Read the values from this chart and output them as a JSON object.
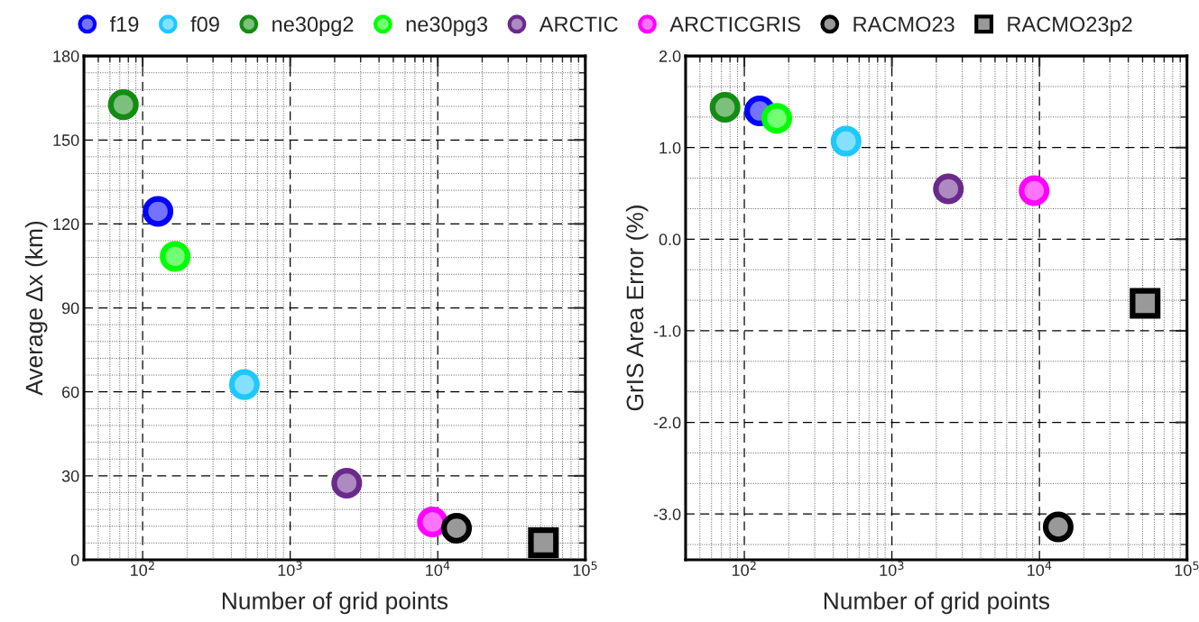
{
  "chart_data": [
    {
      "type": "scatter",
      "xlabel": "Number of grid points",
      "ylabel": "Average Δx (km)",
      "log": "x",
      "grid": true,
      "legend": "top",
      "marker": "circle",
      "xlim": [
        40,
        100000
      ],
      "xticks": [
        {
          "value": 100,
          "label": "10$^{2}$"
        },
        {
          "value": 1000,
          "label": "10$^{3}$"
        },
        {
          "value": 10000,
          "label": "10$^{4}$"
        },
        {
          "value": 100000,
          "label": "10$^{5}$"
        }
      ],
      "ylim": [
        0,
        180
      ],
      "yticks": [
        0,
        30,
        60,
        90,
        120,
        150,
        180
      ],
      "series": [
        {
          "name": "f19",
          "color": "#0000ff",
          "x": [
            127
          ],
          "values": [
            124.5
          ]
        },
        {
          "name": "f09",
          "color": "#1ec8ff",
          "x": [
            489
          ],
          "values": [
            62.6
          ]
        },
        {
          "name": "ne30pg2",
          "color": "#138c13",
          "x": [
            74
          ],
          "values": [
            162.6
          ]
        },
        {
          "name": "ne30pg3",
          "color": "#00ff00",
          "x": [
            166
          ],
          "values": [
            108.4
          ]
        },
        {
          "name": "ARCTIC",
          "color": "#6a2a8c",
          "x": [
            2415
          ],
          "values": [
            27.4
          ]
        },
        {
          "name": "ARCTICGRIS",
          "color": "#ff00ff",
          "x": [
            9200
          ],
          "values": [
            13.5
          ]
        },
        {
          "name": "RACMO23",
          "color": "#000000",
          "x": [
            13400
          ],
          "values": [
            11.3
          ]
        },
        {
          "name": "RACMO23p2",
          "color": "#000000",
          "marker": "square",
          "x": [
            52000
          ],
          "values": [
            6.1
          ]
        }
      ]
    },
    {
      "type": "scatter",
      "xlabel": "Number of grid points",
      "ylabel": "GrIS Area Error (%)",
      "log": "x",
      "grid": true,
      "marker": "circle",
      "xlim": [
        40,
        100000
      ],
      "xticks": [
        {
          "value": 100,
          "label": "10$^{2}$"
        },
        {
          "value": 1000,
          "label": "10$^{3}$"
        },
        {
          "value": 10000,
          "label": "10$^{4}$"
        },
        {
          "value": 100000,
          "label": "10$^{5}$"
        }
      ],
      "ylim": [
        -3.5,
        2.0
      ],
      "yticks": [
        {
          "value": -3,
          "label": "-3.0"
        },
        {
          "value": -2,
          "label": "-2.0"
        },
        {
          "value": -1,
          "label": "-1.0"
        },
        {
          "value": 0,
          "label": "0.0"
        },
        {
          "value": 1,
          "label": "1.0"
        },
        {
          "value": 2,
          "label": "2.0"
        }
      ],
      "series": [
        {
          "color": "#0000ff",
          "x": [
            127
          ],
          "values": [
            1.4
          ]
        },
        {
          "color": "#1ec8ff",
          "x": [
            489
          ],
          "values": [
            1.07
          ]
        },
        {
          "color": "#138c13",
          "x": [
            74
          ],
          "values": [
            1.44
          ]
        },
        {
          "color": "#00ff00",
          "x": [
            166
          ],
          "values": [
            1.32
          ]
        },
        {
          "color": "#6a2a8c",
          "x": [
            2415
          ],
          "values": [
            0.55
          ]
        },
        {
          "color": "#ff00ff",
          "x": [
            9200
          ],
          "values": [
            0.53
          ]
        },
        {
          "color": "#000000",
          "x": [
            13400
          ],
          "values": [
            -3.14
          ]
        },
        {
          "color": "#000000",
          "marker": "square",
          "x": [
            52000
          ],
          "values": [
            -0.7
          ]
        }
      ]
    }
  ]
}
